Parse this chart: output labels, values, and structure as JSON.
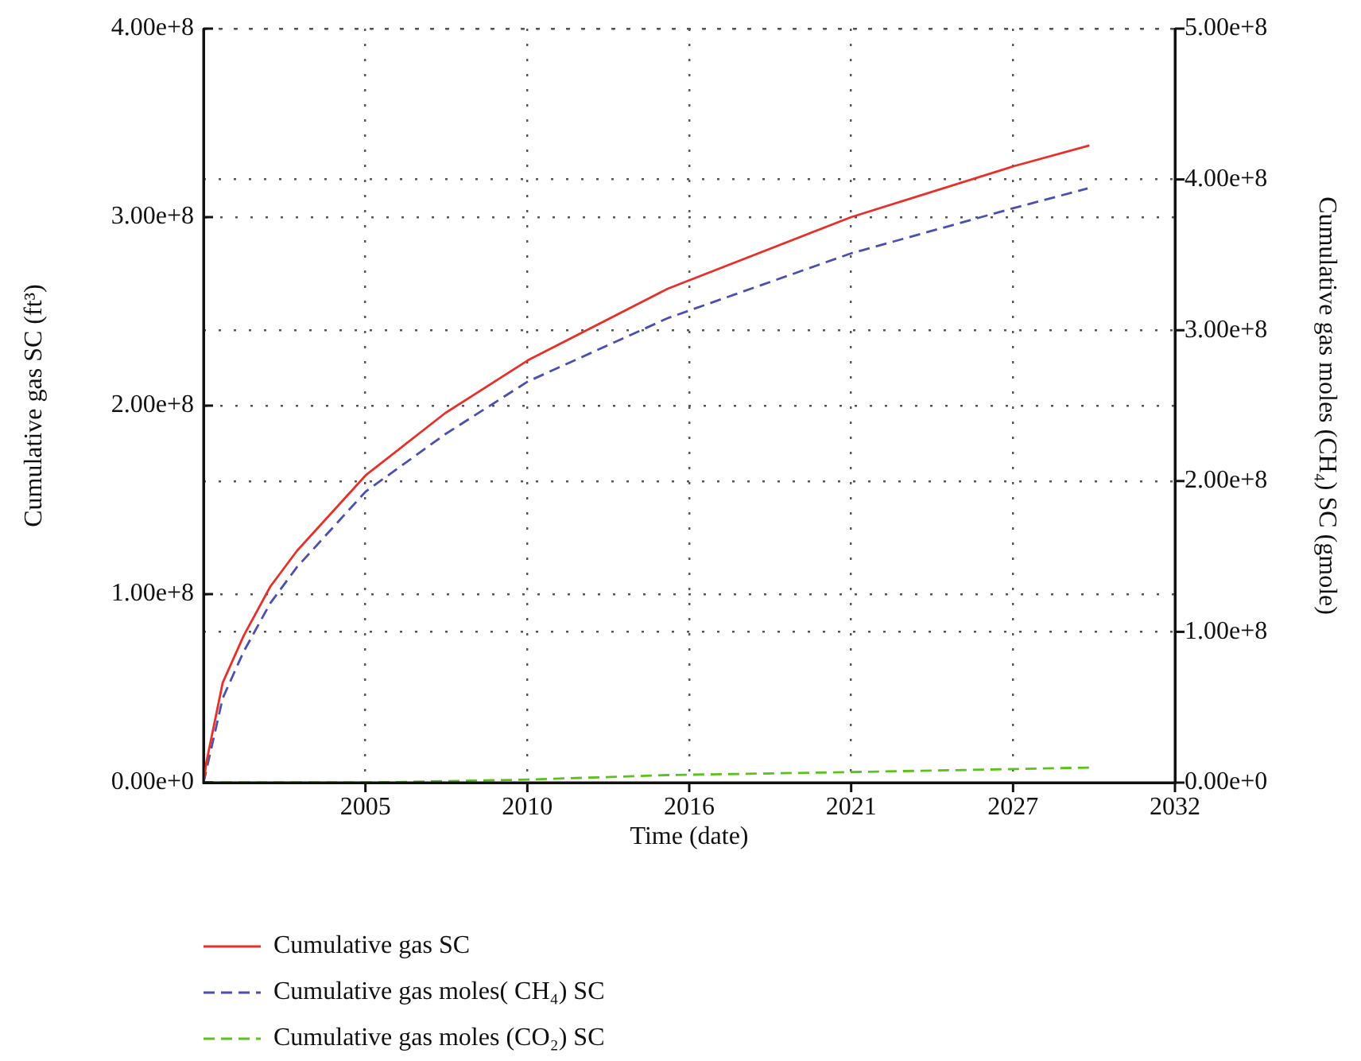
{
  "chart_data": {
    "type": "line",
    "xlabel": "Time (date)",
    "ylabel": "Cumulative gas SC (ft³)",
    "y2label": "Cumulative gas moles (CH₄) SC (gmole)",
    "xlim": [
      "2000-01-01",
      "2032-11-08"
    ],
    "xticks": [
      {
        "value": "2005-06-23",
        "label": "2005"
      },
      {
        "value": "2010-12-14",
        "label": "2010"
      },
      {
        "value": "2016-06-05",
        "label": "2016"
      },
      {
        "value": "2021-11-26",
        "label": "2021"
      },
      {
        "value": "2027-05-19",
        "label": "2027"
      },
      {
        "value": "2032-11-08",
        "label": "2032"
      }
    ],
    "ylim": [
      0,
      400000000
    ],
    "yticks": [
      {
        "value": 0,
        "label": "0.00e+0"
      },
      {
        "value": 100000000,
        "label": "1.00e+8"
      },
      {
        "value": 200000000,
        "label": "2.00e+8"
      },
      {
        "value": 300000000,
        "label": "3.00e+8"
      },
      {
        "value": 400000000,
        "label": "4.00e+8"
      }
    ],
    "y2lim": [
      0,
      500000000
    ],
    "y2ticks": [
      {
        "value": 0,
        "label": "0.00e+0"
      },
      {
        "value": 100000000,
        "label": "1.00e+8"
      },
      {
        "value": 200000000,
        "label": "2.00e+8"
      },
      {
        "value": 300000000,
        "label": "3.00e+8"
      },
      {
        "value": 400000000,
        "label": "4.00e+8"
      },
      {
        "value": 500000000,
        "label": "5.00e+8"
      }
    ],
    "grid": true,
    "legend": "bottom left",
    "marker": "none",
    "series": [
      {
        "name": "Cumulative gas SC",
        "color": "#e8302a",
        "line_style": "solid",
        "x": [
          "2000-01-01",
          "2000-02-06",
          "2000-08-25",
          "2001-05-12",
          "2002-04-05",
          "2003-03-01",
          "2005-06-25",
          "2008-03-03",
          "2010-12-20",
          "2015-09-13",
          "2021-11-26",
          "2027-05-26",
          "2029-12-17"
        ],
        "values": [
          0,
          11000000,
          53000000,
          78000000,
          104000000,
          123000000,
          163000000,
          196000000,
          224000000,
          262000000,
          300000000,
          327000000,
          338000000
        ]
      },
      {
        "name": "Cumulative gas moles( CH₄) SC",
        "color": "#4b4fb0",
        "line_style": "dashed",
        "axis": "y2",
        "x": [
          "2000-01-01",
          "2000-08-25",
          "2001-05-12",
          "2002-04-05",
          "2003-03-01",
          "2005-06-25",
          "2008-03-03",
          "2010-12-20",
          "2015-09-13",
          "2021-11-26",
          "2027-05-26",
          "2029-11-25"
        ],
        "values": [
          0,
          56000000,
          87000000,
          119000000,
          143000000,
          193000000,
          231000000,
          266000000,
          308000000,
          351000000,
          381000000,
          394000000
        ]
      },
      {
        "name": "Cumulative gas moles (CO₂) SC",
        "color": "#5cc01e",
        "line_style": "dashed",
        "axis": "y2",
        "x": [
          "2000-01-01",
          "2005-06-25",
          "2010-12-20",
          "2015-09-13",
          "2021-11-26",
          "2027-05-26",
          "2029-12-17"
        ],
        "values": [
          0,
          0,
          2000000,
          5000000,
          7000000,
          9000000,
          10000000
        ]
      }
    ]
  }
}
